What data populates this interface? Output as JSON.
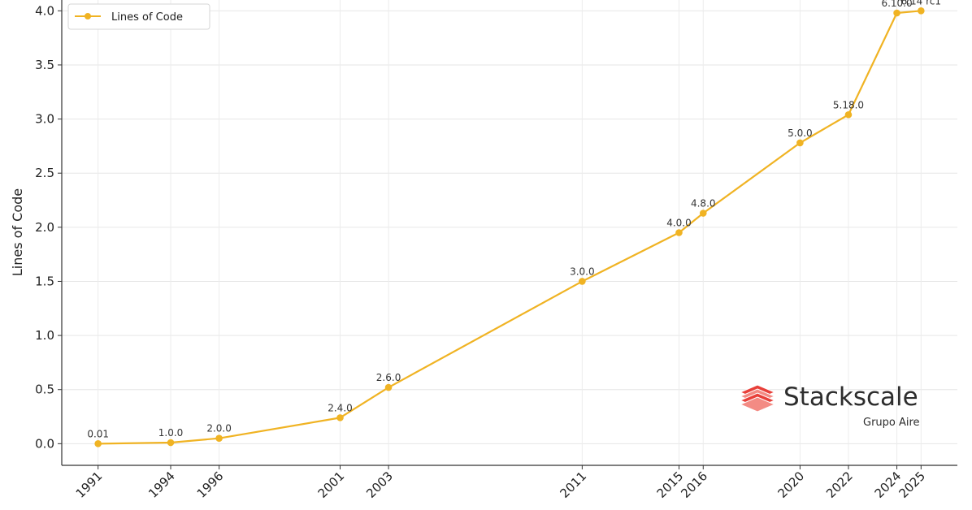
{
  "chart_data": {
    "type": "line",
    "title": "",
    "xlabel": "",
    "ylabel": "Lines of Code",
    "ylim": [
      -0.2,
      4.1
    ],
    "xlim": [
      1989.5,
      2026.5
    ],
    "yticks": [
      "0.0",
      "0.5",
      "1.0",
      "1.5",
      "2.0",
      "2.5",
      "3.0",
      "3.5",
      "4.0"
    ],
    "grid": true,
    "legend_position": "top-left",
    "series": [
      {
        "name": "Lines of Code",
        "color": "#f0b323",
        "points": [
          {
            "x": 1991,
            "y": 0.0,
            "label": "0.01"
          },
          {
            "x": 1994,
            "y": 0.01,
            "label": "1.0.0"
          },
          {
            "x": 1996,
            "y": 0.05,
            "label": "2.0.0"
          },
          {
            "x": 2001,
            "y": 0.24,
            "label": "2.4.0"
          },
          {
            "x": 2003,
            "y": 0.52,
            "label": "2.6.0"
          },
          {
            "x": 2011,
            "y": 1.5,
            "label": "3.0.0"
          },
          {
            "x": 2015,
            "y": 1.95,
            "label": "4.0.0"
          },
          {
            "x": 2016,
            "y": 2.13,
            "label": "4.8.0"
          },
          {
            "x": 2020,
            "y": 2.78,
            "label": "5.0.0"
          },
          {
            "x": 2022,
            "y": 3.04,
            "label": "5.18.0"
          },
          {
            "x": 2024,
            "y": 3.98,
            "label": "6.10.0"
          },
          {
            "x": 2025,
            "y": 4.0,
            "label": "6.14 rc1"
          }
        ]
      }
    ]
  },
  "watermark": {
    "brand": "Stackscale",
    "subtitle": "Grupo Aire",
    "color": "#e8403a"
  }
}
